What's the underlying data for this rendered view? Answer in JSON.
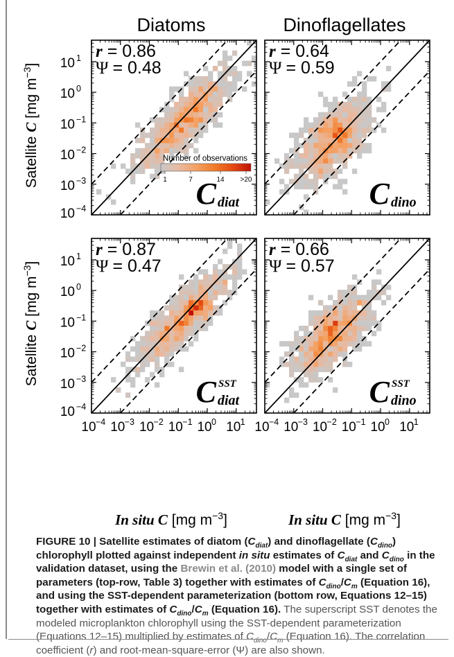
{
  "columns": [
    "Diatoms",
    "Dinoflagellates"
  ],
  "y_label_pre": "Satellite ",
  "y_label_italic": "C",
  "y_label_unit": " [mg m",
  "x_label_italic": "In situ C",
  "x_label_unit": " [mg m",
  "unit_exp": "−3",
  "unit_close": "]",
  "ticks": [
    "10",
    "10",
    "10",
    "10",
    "10",
    "10"
  ],
  "tick_exponents": [
    "−4",
    "−3",
    "−2",
    "−1",
    "0",
    "1"
  ],
  "colorbar": {
    "title": "Number of observations",
    "tick_labels": [
      "1",
      "7",
      "14",
      ">20"
    ],
    "colors": [
      "#c8c8c8",
      "#e8b9a0",
      "#f4a062",
      "#f07a2a",
      "#e44a12",
      "#c01208"
    ]
  },
  "panels": [
    {
      "r_label": "r",
      "r_val": "= 0.86",
      "psi_label": "Ψ",
      "psi_val": "= 0.48",
      "name_main": "C",
      "name_sub": "diat",
      "name_sup": ""
    },
    {
      "r_label": "r",
      "r_val": "= 0.64",
      "psi_label": "Ψ",
      "psi_val": "= 0.59",
      "name_main": "C",
      "name_sub": "dino",
      "name_sup": ""
    },
    {
      "r_label": "r",
      "r_val": "= 0.87",
      "psi_label": "Ψ",
      "psi_val": "= 0.47",
      "name_main": "C",
      "name_sub": "diat",
      "name_sup": "SST"
    },
    {
      "r_label": "r",
      "r_val": "= 0.66",
      "psi_label": "Ψ",
      "psi_val": "= 0.57",
      "name_main": "C",
      "name_sub": "dino",
      "name_sup": "SST"
    }
  ],
  "chart_data": [
    {
      "type": "heatmap",
      "title": "Diatoms",
      "x_scale": "log",
      "y_scale": "log",
      "xlim": [
        0.0001,
        50
      ],
      "ylim": [
        0.0001,
        50
      ],
      "xlabel": "In situ C [mg m−3]",
      "ylabel": "Satellite C [mg m−3]",
      "annotations": [
        "r = 0.86",
        "Ψ = 0.48",
        "C_diat"
      ],
      "lines": [
        "1:1 (solid)",
        "±1 decade (dashed)"
      ],
      "cluster": {
        "x_center_log10": -0.8,
        "y_center_log10": -0.9,
        "x_spread": 0.85,
        "corr": 0.86,
        "resid": 0.45,
        "peak_x_log10": -0.3,
        "peak_y_log10": -0.6
      }
    },
    {
      "type": "heatmap",
      "title": "Dinoflagellates",
      "x_scale": "log",
      "y_scale": "log",
      "xlim": [
        0.0001,
        50
      ],
      "ylim": [
        0.0001,
        50
      ],
      "xlabel": "In situ C [mg m−3]",
      "ylabel": "Satellite C [mg m−3]",
      "annotations": [
        "r = 0.64",
        "Ψ = 0.59",
        "C_dino"
      ],
      "lines": [
        "1:1 (solid)",
        "±1 decade (dashed)"
      ],
      "cluster": {
        "x_center_log10": -1.7,
        "y_center_log10": -1.6,
        "x_spread": 0.7,
        "corr": 0.64,
        "resid": 0.55,
        "peak_x_log10": -1.7,
        "peak_y_log10": -1.3
      }
    },
    {
      "type": "heatmap",
      "title": "",
      "x_scale": "log",
      "y_scale": "log",
      "xlim": [
        0.0001,
        50
      ],
      "ylim": [
        0.0001,
        50
      ],
      "xlabel": "In situ C [mg m−3]",
      "ylabel": "Satellite C [mg m−3]",
      "annotations": [
        "r = 0.87",
        "Ψ = 0.47",
        "C_diat^SST"
      ],
      "lines": [
        "1:1 (solid)",
        "±1 decade (dashed)"
      ],
      "cluster": {
        "x_center_log10": -0.8,
        "y_center_log10": -0.9,
        "x_spread": 0.85,
        "corr": 0.87,
        "resid": 0.44,
        "peak_x_log10": -0.3,
        "peak_y_log10": -0.6
      }
    },
    {
      "type": "heatmap",
      "title": "",
      "x_scale": "log",
      "y_scale": "log",
      "xlim": [
        0.0001,
        50
      ],
      "ylim": [
        0.0001,
        50
      ],
      "xlabel": "In situ C [mg m−3]",
      "ylabel": "Satellite C [mg m−3]",
      "annotations": [
        "r = 0.66",
        "Ψ = 0.57",
        "C_dino^SST"
      ],
      "lines": [
        "1:1 (solid)",
        "±1 decade (dashed)"
      ],
      "cluster": {
        "x_center_log10": -1.7,
        "y_center_log10": -1.5,
        "x_spread": 0.7,
        "corr": 0.66,
        "resid": 0.52,
        "peak_x_log10": -1.7,
        "peak_y_log10": -1.2
      }
    }
  ],
  "caption": {
    "lead": "FIGURE 10 | Satellite estimates of diatom (",
    "t1": ") and dinoflagellate (",
    "t2": ") chlorophyll plotted against independent ",
    "t2i": "in situ",
    "t3": " estimates of ",
    "t4": " and ",
    "t5": " in the validation dataset, using the ",
    "cite": "Brewin et al. (2010)",
    "t6": " model with a single set of parameters (top-row, Table 3) together with estimates of ",
    "t7": " (Equation 16), and using the SST-dependent parameterization (bottom row, Equations 12–15) together with estimates of ",
    "t8": " (Equation 16).",
    "rest1": " The superscript SST denotes the modeled microplankton chlorophyll using the SST-dependent parameterization (Equations 12–15) multiplied by estimates of ",
    "rest2": " (Equation 16). The correlation coefficient (",
    "rest2i": "r",
    "rest3": ") and root-mean-square-error (Ψ) are also shown.",
    "sym_C": "C",
    "sub_diat": "diat",
    "sub_dino": "dino",
    "sub_m": "m",
    "slash": "/"
  }
}
